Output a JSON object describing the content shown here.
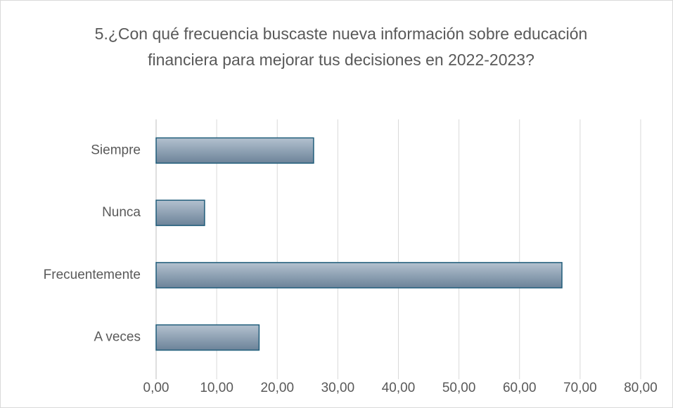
{
  "chart_data": {
    "type": "bar",
    "orientation": "horizontal",
    "title": "5.¿Con qué frecuencia buscaste nueva información sobre educación financiera para mejorar tus decisiones en 2022-2023?",
    "categories": [
      "Siempre",
      "Nunca",
      "Frecuentemente",
      "A veces"
    ],
    "values": [
      26,
      8,
      67,
      17
    ],
    "color": "#8a9eb3",
    "xlim": [
      0,
      80
    ],
    "xticks": [
      {
        "value": 0,
        "label": "0,00"
      },
      {
        "value": 10,
        "label": "10,00"
      },
      {
        "value": 20,
        "label": "20,00"
      },
      {
        "value": 30,
        "label": "30,00"
      },
      {
        "value": 40,
        "label": "40,00"
      },
      {
        "value": 50,
        "label": "50,00"
      },
      {
        "value": 60,
        "label": "60,00"
      },
      {
        "value": 70,
        "label": "70,00"
      },
      {
        "value": 80,
        "label": "80,00"
      }
    ],
    "grid": true
  }
}
